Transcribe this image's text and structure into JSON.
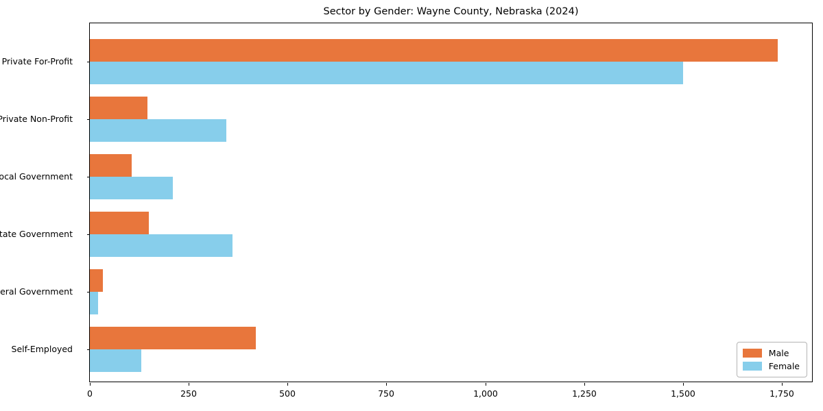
{
  "title": "Sector by Gender: Wayne County, Nebraska (2024)",
  "chart_data": {
    "type": "bar",
    "orientation": "horizontal",
    "title": "Sector by Gender: Wayne County, Nebraska (2024)",
    "xlabel": "",
    "ylabel": "",
    "categories": [
      "Private For-Profit",
      "Private Non-Profit",
      "Local Government",
      "State Government",
      "Federal Government",
      "Self-Employed"
    ],
    "series": [
      {
        "name": "Male",
        "color": "#E8763C",
        "values": [
          1740,
          145,
          105,
          150,
          33,
          420
        ]
      },
      {
        "name": "Female",
        "color": "#87CEEB",
        "values": [
          1500,
          345,
          210,
          360,
          21,
          130
        ]
      }
    ],
    "xlim": [
      0,
      1830
    ],
    "xticks": [
      0,
      250,
      500,
      750,
      1000,
      1250,
      1500,
      1750
    ],
    "xtick_labels": [
      "0",
      "250",
      "500",
      "750",
      "1,000",
      "1,250",
      "1,500",
      "1,750"
    ],
    "grid": false,
    "legend_position": "lower right",
    "legend_entries": [
      "Male",
      "Female"
    ]
  }
}
